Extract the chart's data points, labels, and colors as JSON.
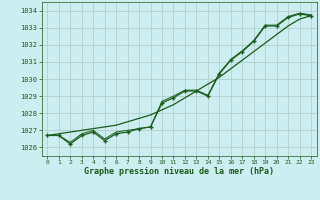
{
  "title": "Graphe pression niveau de la mer (hPa)",
  "bg_color": "#cceef0",
  "grid_color": "#b0c8c8",
  "line_color": "#1a5c1a",
  "xlim": [
    -0.5,
    23.5
  ],
  "ylim": [
    1025.5,
    1034.5
  ],
  "yticks": [
    1026,
    1027,
    1028,
    1029,
    1030,
    1031,
    1032,
    1033,
    1034
  ],
  "xticks": [
    0,
    1,
    2,
    3,
    4,
    5,
    6,
    7,
    8,
    9,
    10,
    11,
    12,
    13,
    14,
    15,
    16,
    17,
    18,
    19,
    20,
    21,
    22,
    23
  ],
  "line_main": [
    1026.7,
    1026.7,
    1026.2,
    1026.7,
    1026.9,
    1026.4,
    1026.8,
    1026.9,
    1027.1,
    1027.2,
    1028.6,
    1028.9,
    1029.3,
    1029.3,
    1029.0,
    1030.3,
    1031.1,
    1031.6,
    1032.2,
    1033.1,
    1033.1,
    1033.6,
    1033.8,
    1033.7
  ],
  "line_smooth": [
    1026.7,
    1026.8,
    1026.9,
    1027.0,
    1027.1,
    1027.2,
    1027.3,
    1027.5,
    1027.7,
    1027.9,
    1028.2,
    1028.5,
    1028.9,
    1029.3,
    1029.7,
    1030.1,
    1030.6,
    1031.1,
    1031.6,
    1032.1,
    1032.6,
    1033.1,
    1033.5,
    1033.7
  ],
  "line_extra": [
    1026.7,
    1026.7,
    1026.3,
    1026.8,
    1027.0,
    1026.5,
    1026.9,
    1027.0,
    1027.1,
    1027.2,
    1028.7,
    1029.0,
    1029.35,
    1029.35,
    1029.05,
    1030.35,
    1031.15,
    1031.65,
    1032.25,
    1033.15,
    1033.15,
    1033.65,
    1033.85,
    1033.75
  ]
}
